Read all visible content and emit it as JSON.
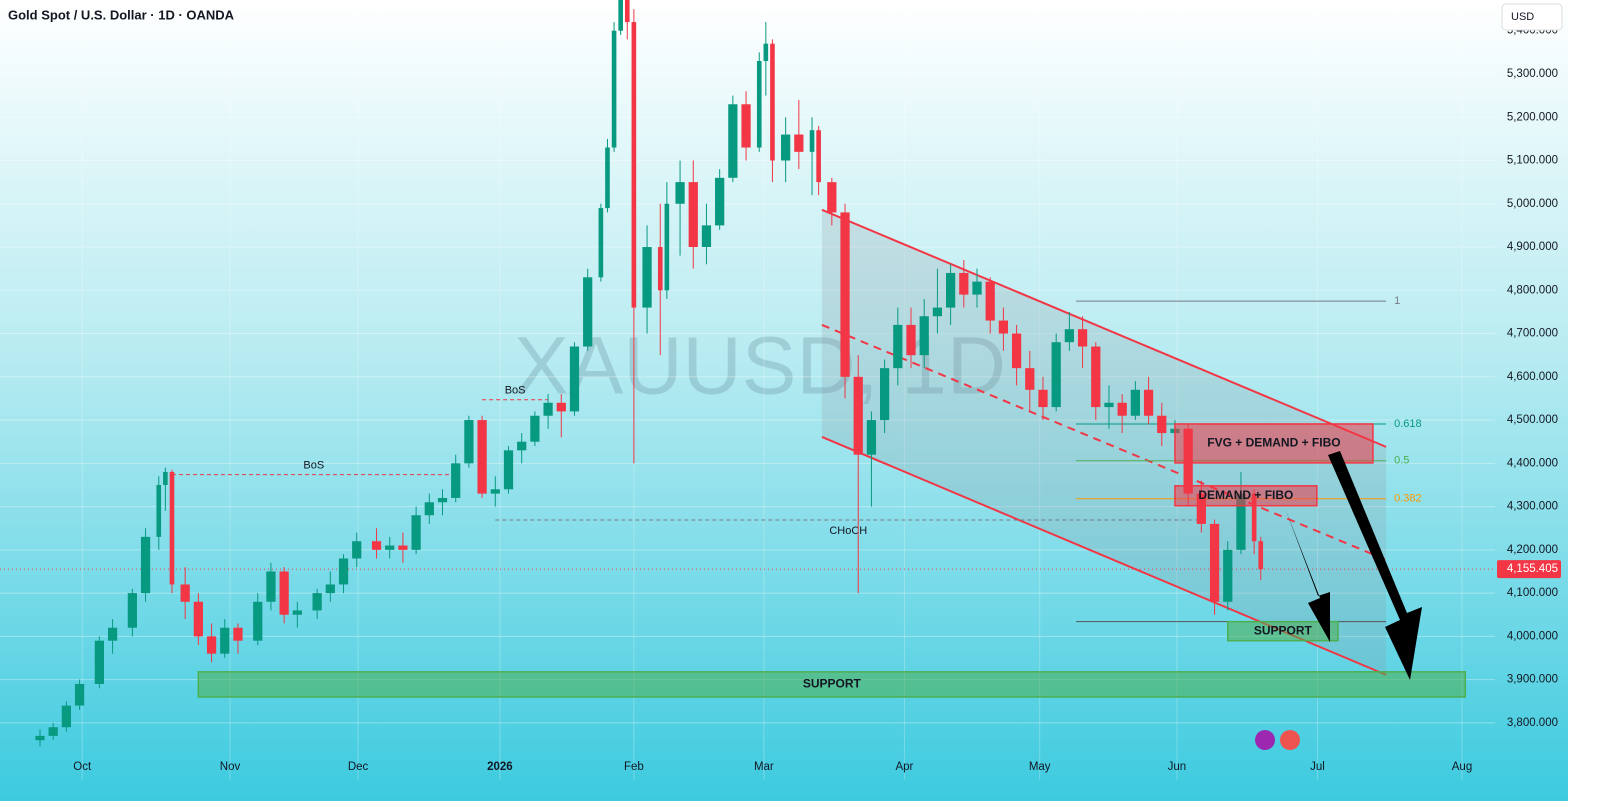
{
  "chart_data": {
    "type": "candlestick",
    "title": "Gold Spot / U.S. Dollar · 1D · OANDA",
    "watermark": "XAUUSD, 1D",
    "currency": "USD",
    "up_color": "#089981",
    "down_color": "#f23645",
    "x": [
      0,
      2,
      4,
      6,
      9,
      11,
      14,
      16,
      18,
      19,
      20,
      22,
      24,
      26,
      28,
      30,
      33,
      35,
      37,
      39,
      42,
      44,
      46,
      48,
      51,
      53,
      55,
      57,
      59,
      61,
      63,
      65,
      67,
      69,
      71,
      73,
      75,
      77,
      79,
      81,
      83,
      85,
      86,
      87,
      88,
      89,
      90,
      92,
      94,
      95,
      97,
      99,
      101,
      103,
      105,
      107,
      109,
      110,
      111,
      113,
      115,
      117,
      118,
      120,
      122,
      124,
      126,
      128,
      130,
      132,
      134,
      136,
      138,
      140,
      142,
      144,
      146,
      148,
      150,
      152,
      154,
      156,
      158,
      160,
      162,
      164,
      166,
      168,
      170,
      172,
      174,
      176,
      178,
      180,
      182,
      184,
      185
    ],
    "open": [
      3760,
      3770,
      3790,
      3840,
      3890,
      3990,
      4020,
      4100,
      4230,
      4350,
      4380,
      4120,
      4080,
      4000,
      3960,
      4020,
      3990,
      4080,
      4150,
      4050,
      4060,
      4100,
      4120,
      4180,
      4220,
      4200,
      4210,
      4200,
      4280,
      4310,
      4320,
      4400,
      4500,
      4330,
      4340,
      4430,
      4450,
      4510,
      4540,
      4520,
      4670,
      4830,
      4990,
      5130,
      5400,
      5500,
      5420,
      4760,
      4900,
      4800,
      5000,
      5050,
      4900,
      4950,
      5060,
      5230,
      5130,
      5330,
      5370,
      5100,
      5160,
      5120,
      5170,
      5050,
      4980,
      4600,
      4420,
      4500,
      4620,
      4720,
      4650,
      4740,
      4760,
      4840,
      4790,
      4820,
      4730,
      4700,
      4620,
      4570,
      4530,
      4680,
      4710,
      4670,
      4530,
      4540,
      4510,
      4570,
      4510,
      4470,
      4480,
      4330,
      4260,
      4080,
      4200,
      4330,
      4220
    ],
    "high": [
      3785,
      3800,
      3850,
      3900,
      4000,
      4040,
      4110,
      4250,
      4370,
      4390,
      4385,
      4160,
      4100,
      4030,
      4040,
      4030,
      4100,
      4170,
      4160,
      4080,
      4110,
      4150,
      4190,
      4240,
      4250,
      4230,
      4240,
      4300,
      4330,
      4340,
      4420,
      4510,
      4510,
      4370,
      4440,
      4470,
      4520,
      4560,
      4560,
      4680,
      4850,
      5000,
      5150,
      5420,
      5530,
      5600,
      5450,
      4950,
      5000,
      5050,
      5100,
      5100,
      5000,
      5080,
      5250,
      5260,
      5350,
      5420,
      5380,
      5200,
      5240,
      5200,
      5180,
      5060,
      5000,
      4650,
      4520,
      4640,
      4760,
      4760,
      4780,
      4850,
      4860,
      4870,
      4850,
      4830,
      4760,
      4720,
      4660,
      4600,
      4700,
      4750,
      4740,
      4680,
      4580,
      4560,
      4590,
      4600,
      4540,
      4500,
      4490,
      4360,
      4270,
      4220,
      4380,
      4340,
      4230
    ],
    "low": [
      3745,
      3760,
      3780,
      3830,
      3880,
      3960,
      4000,
      4080,
      4200,
      4290,
      4100,
      4040,
      3980,
      3940,
      3950,
      3960,
      3980,
      4060,
      4030,
      4020,
      4040,
      4080,
      4100,
      4160,
      4180,
      4180,
      4170,
      4190,
      4260,
      4280,
      4310,
      4390,
      4320,
      4300,
      4330,
      4400,
      4440,
      4480,
      4460,
      4510,
      4660,
      4820,
      4980,
      5120,
      5390,
      5380,
      4400,
      4700,
      4650,
      4780,
      4880,
      4850,
      4860,
      4940,
      5050,
      5100,
      5120,
      5250,
      5050,
      5050,
      5080,
      5020,
      5020,
      4950,
      4550,
      4100,
      4300,
      4470,
      4580,
      4620,
      4620,
      4700,
      4720,
      4760,
      4760,
      4700,
      4660,
      4580,
      4520,
      4500,
      4520,
      4660,
      4620,
      4500,
      4480,
      4470,
      4500,
      4490,
      4440,
      4420,
      4300,
      4240,
      4050,
      4060,
      4190,
      4190,
      4130
    ],
    "close": [
      3770,
      3790,
      3840,
      3890,
      3990,
      4020,
      4100,
      4230,
      4350,
      4380,
      4120,
      4080,
      4000,
      3960,
      4020,
      3990,
      4080,
      4150,
      4050,
      4060,
      4100,
      4120,
      4180,
      4220,
      4200,
      4210,
      4200,
      4280,
      4310,
      4320,
      4400,
      4500,
      4330,
      4340,
      4430,
      4450,
      4510,
      4540,
      4520,
      4670,
      4830,
      4990,
      5130,
      5400,
      5500,
      5420,
      4760,
      4900,
      4800,
      5000,
      5050,
      4900,
      4950,
      5060,
      5230,
      5130,
      5330,
      5370,
      5100,
      5160,
      5120,
      5170,
      5050,
      4980,
      4600,
      4420,
      4500,
      4620,
      4720,
      4650,
      4740,
      4760,
      4840,
      4790,
      4820,
      4730,
      4700,
      4620,
      4570,
      4530,
      4680,
      4710,
      4670,
      4530,
      4540,
      4510,
      4570,
      4510,
      4470,
      4480,
      4330,
      4260,
      4080,
      4200,
      4330,
      4220,
      4155
    ],
    "xlim": [
      -6.06,
      220.5
    ],
    "xticks": [
      {
        "value": 6.4,
        "label": "Oct"
      },
      {
        "value": 28.8,
        "label": "Nov"
      },
      {
        "value": 48.2,
        "label": "Dec"
      },
      {
        "value": 69.7,
        "label": "2026"
      },
      {
        "value": 90,
        "label": "Feb"
      },
      {
        "value": 109.7,
        "label": "Mar"
      },
      {
        "value": 131,
        "label": "Apr"
      },
      {
        "value": 151.5,
        "label": "May"
      },
      {
        "value": 172.3,
        "label": "Jun"
      },
      {
        "value": 193.6,
        "label": "Jul"
      },
      {
        "value": 215.5,
        "label": "Aug"
      }
    ],
    "ylim": [
      3668,
      5471
    ],
    "yticks": [
      {
        "value": 3800,
        "label": "3,800.000"
      },
      {
        "value": 3900,
        "label": "3,900.000"
      },
      {
        "value": 4000,
        "label": "4,000.000"
      },
      {
        "value": 4100,
        "label": "4,100.000"
      },
      {
        "value": 4200,
        "label": "4,200.000"
      },
      {
        "value": 4300,
        "label": "4,300.000"
      },
      {
        "value": 4400,
        "label": "4,400.000"
      },
      {
        "value": 4500,
        "label": "4,500.000"
      },
      {
        "value": 4600,
        "label": "4,600.000"
      },
      {
        "value": 4700,
        "label": "4,700.000"
      },
      {
        "value": 4800,
        "label": "4,800.000"
      },
      {
        "value": 4900,
        "label": "4,900.000"
      },
      {
        "value": 5000,
        "label": "5,000.000"
      },
      {
        "value": 5100,
        "label": "5,100.000"
      },
      {
        "value": 5200,
        "label": "5,200.000"
      },
      {
        "value": 5300,
        "label": "5,300.000"
      },
      {
        "value": 5400,
        "label": "5,400.000"
      }
    ],
    "last_price": {
      "value": 4155.405,
      "label": "4,155.405"
    },
    "structure_lines": [
      {
        "label": "BoS",
        "x": [
          20,
          63
        ],
        "price": 4374,
        "color": "#f23645"
      },
      {
        "label": "BoS",
        "x": [
          67,
          77
        ],
        "price": 4547,
        "color": "#f23645"
      },
      {
        "label": "CHoCH",
        "x": [
          69,
          176
        ],
        "price": 4269,
        "color": "#787b86"
      }
    ],
    "channel": {
      "x": [
        118.5,
        204
      ],
      "upper": [
        4986,
        4438
      ],
      "middle": [
        4720,
        4177
      ],
      "lower": [
        4461,
        3911
      ],
      "color": "#f23645"
    },
    "fib_levels": [
      {
        "label": "1",
        "price": 4775,
        "color": "#787b86"
      },
      {
        "label": "0.618",
        "price": 4491,
        "color": "#089981"
      },
      {
        "label": "0.5",
        "price": 4406,
        "color": "#4caf50"
      },
      {
        "label": "0.382",
        "price": 4318,
        "color": "#ff9800"
      }
    ],
    "fib_base": 4034,
    "fib_x": [
      157,
      204
    ],
    "zones": [
      {
        "label": "FVG + DEMAND + FIBO",
        "x": [
          172,
          202
        ],
        "price": [
          4401,
          4491
        ],
        "color": "#f23645"
      },
      {
        "label": "DEMAND + FIBO",
        "x": [
          172,
          193.5
        ],
        "price": [
          4302,
          4348
        ],
        "color": "#f23645"
      },
      {
        "label": "SUPPORT",
        "x": [
          180,
          196.7
        ],
        "price": [
          3990,
          4034
        ],
        "color": "#4caf50"
      },
      {
        "label": "SUPPORT",
        "x": [
          24,
          216
        ],
        "price": [
          3860,
          3918
        ],
        "color": "#4caf50"
      }
    ]
  }
}
